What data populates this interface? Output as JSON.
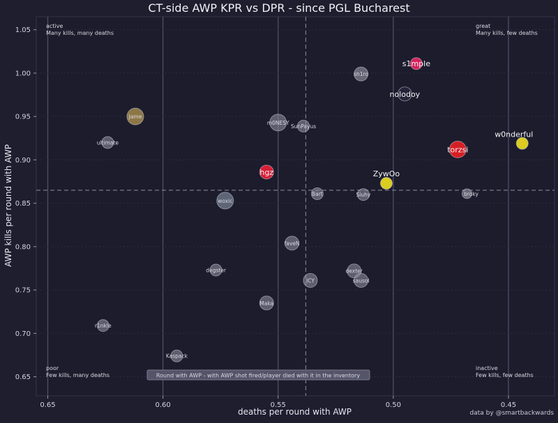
{
  "chart_data": {
    "type": "scatter",
    "title": "CT-side AWP KPR vs DPR - since PGL Bucharest",
    "xlabel": "deaths per round with AWP",
    "ylabel": "AWP kills per round with AWP",
    "x_inverted": true,
    "xlim": [
      0.655,
      0.43
    ],
    "ylim": [
      0.628,
      1.065
    ],
    "x_ticks": [
      0.65,
      0.6,
      0.55,
      0.5,
      0.45
    ],
    "x_tick_labels": [
      "0.65",
      "0.60",
      "0.55",
      "0.50",
      "0.45"
    ],
    "y_ticks": [
      0.65,
      0.7,
      0.75,
      0.8,
      0.85,
      0.9,
      0.95,
      1.0,
      1.05
    ],
    "y_tick_labels": [
      "0.65",
      "0.70",
      "0.75",
      "0.80",
      "0.85",
      "0.90",
      "0.95",
      "1.00",
      "1.05"
    ],
    "grid": true,
    "reference_lines": {
      "x": 0.538,
      "y": 0.865
    },
    "quadrants": [
      {
        "corner": "top-left",
        "title": "active",
        "subtitle": "Many kills, many deaths"
      },
      {
        "corner": "top-right",
        "title": "great",
        "subtitle": "Many kills, few deaths"
      },
      {
        "corner": "bottom-left",
        "title": "poor",
        "subtitle": "Few kills, many deaths"
      },
      {
        "corner": "bottom-right",
        "title": "inactive",
        "subtitle": "Few kills, few deaths"
      }
    ],
    "footnote": "Round with AWP - with AWP shot fired/player died with it in the inventory",
    "points": [
      {
        "name": "s1mple",
        "x": 0.49,
        "y": 1.011,
        "size": 1,
        "color": "#e0245e",
        "highlight": true
      },
      {
        "name": "sh1ro",
        "x": 0.514,
        "y": 0.999,
        "size": 2,
        "color": "#9a9aa8",
        "highlight": false
      },
      {
        "name": "nolodoy",
        "x": 0.495,
        "y": 0.976,
        "size": 2,
        "color": "#25253a",
        "highlight": true
      },
      {
        "name": "w0nderful",
        "x": 0.444,
        "y": 0.919,
        "size": 1,
        "color": "#e6d61f",
        "highlight": true
      },
      {
        "name": "torzsi",
        "x": 0.472,
        "y": 0.912,
        "size": 3,
        "color": "#e02025",
        "highlight": true
      },
      {
        "name": "ZywOo",
        "x": 0.503,
        "y": 0.873,
        "size": 1,
        "color": "#e6d61f",
        "highlight": true
      },
      {
        "name": "broky",
        "x": 0.468,
        "y": 0.861,
        "size": 0,
        "color": "#9a9aa8",
        "highlight": false
      },
      {
        "name": "m0NESY",
        "x": 0.55,
        "y": 0.943,
        "size": 3,
        "color": "#8a8a9c",
        "highlight": false
      },
      {
        "name": "Jame",
        "x": 0.612,
        "y": 0.95,
        "size": 3,
        "color": "#d8b45a",
        "highlight": false
      },
      {
        "name": "SunPayus",
        "x": 0.539,
        "y": 0.939,
        "size": 1,
        "color": "#8a8a9c",
        "highlight": false
      },
      {
        "name": "ultimate",
        "x": 0.624,
        "y": 0.92,
        "size": 1,
        "color": "#8a8a9c",
        "highlight": false
      },
      {
        "name": "hgz",
        "x": 0.555,
        "y": 0.886,
        "size": 2,
        "color": "#e02038",
        "highlight": true
      },
      {
        "name": "Bart",
        "x": 0.533,
        "y": 0.861,
        "size": 1,
        "color": "#8a8a9c",
        "highlight": false
      },
      {
        "name": "Siuhy",
        "x": 0.513,
        "y": 0.86,
        "size": 1,
        "color": "#8a8a9c",
        "highlight": false
      },
      {
        "name": "woxic",
        "x": 0.573,
        "y": 0.853,
        "size": 3,
        "color": "#8a96a8",
        "highlight": false
      },
      {
        "name": "faveN",
        "x": 0.544,
        "y": 0.804,
        "size": 2,
        "color": "#8a8a9c",
        "highlight": false
      },
      {
        "name": "degster",
        "x": 0.577,
        "y": 0.773,
        "size": 1,
        "color": "#8a8a9c",
        "highlight": false
      },
      {
        "name": "dexter",
        "x": 0.517,
        "y": 0.772,
        "size": 2,
        "color": "#8a8a9c",
        "highlight": false
      },
      {
        "name": "ICY",
        "x": 0.536,
        "y": 0.761,
        "size": 2,
        "color": "#8a8a9c",
        "highlight": false
      },
      {
        "name": "sausol",
        "x": 0.514,
        "y": 0.761,
        "size": 2,
        "color": "#8a8a9c",
        "highlight": false
      },
      {
        "name": "Maka",
        "x": 0.555,
        "y": 0.735,
        "size": 2,
        "color": "#8a8a9c",
        "highlight": false
      },
      {
        "name": "r1nkle",
        "x": 0.626,
        "y": 0.709,
        "size": 1,
        "color": "#8a8a9c",
        "highlight": false
      },
      {
        "name": "Kaspack",
        "x": 0.594,
        "y": 0.674,
        "size": 1,
        "color": "#8a8a9c",
        "highlight": false
      }
    ],
    "credit": "data by @smartbackwards"
  }
}
